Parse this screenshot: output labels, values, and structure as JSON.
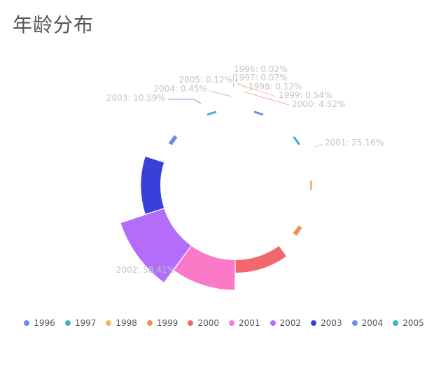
{
  "title": "年龄分布",
  "chart_data": {
    "type": "pie",
    "subtype": "rose",
    "title": "年龄分布",
    "categories": [
      "1996",
      "1997",
      "1998",
      "1999",
      "2000",
      "2001",
      "2002",
      "2003",
      "2004",
      "2005"
    ],
    "values": [
      0.02,
      0.07,
      0.12,
      0.54,
      4.52,
      25.16,
      58.41,
      10.59,
      0.45,
      0.12
    ],
    "labels": [
      "1996: 0.02%",
      "1997: 0.07%",
      "1998: 0.12%",
      "1999: 0.54%",
      "2000: 4.52%",
      "2001: 25.16%",
      "2002: 58.41%",
      "2003: 10.59%",
      "2004: 0.45%",
      "2005: 0.12%"
    ],
    "colors": [
      "#6f8be8",
      "#3fb2c6",
      "#f8b567",
      "#f38c5d",
      "#f0686e",
      "#fb7ac7",
      "#b46cfb",
      "#3b3fd9",
      "#6f8be8",
      "#3fb2c6"
    ],
    "legend_position": "bottom"
  }
}
